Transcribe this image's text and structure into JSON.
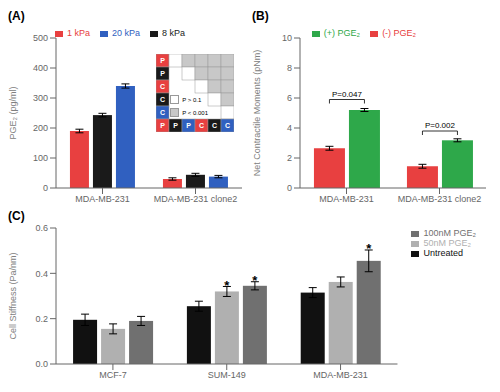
{
  "chart_data": [
    {
      "type": "bar",
      "title": "(A)",
      "ylabel": "PGE₂ (pg/ml)",
      "categories": [
        "MDA-MB-231",
        "MDA-MB-231 clone2"
      ],
      "series": [
        {
          "name": "1 kPa",
          "color": "#e84040",
          "values": [
            190,
            30
          ],
          "errors": [
            6,
            4
          ]
        },
        {
          "name": "8 kPa",
          "color": "#1a1a1a",
          "values": [
            243,
            44
          ],
          "errors": [
            6,
            5
          ]
        },
        {
          "name": "20 kPa",
          "color": "#3060c0",
          "values": [
            340,
            38
          ],
          "errors": [
            7,
            4
          ]
        }
      ],
      "ylim": [
        0,
        500
      ],
      "yticks": [
        0,
        100,
        200,
        300,
        400,
        500
      ],
      "legend": "top"
    },
    {
      "type": "bar",
      "title": "(B)",
      "ylabel": "Net Contractile Moments (pNm)",
      "categories": [
        "MDA-MB-231",
        "MDA-MB-231 clone2"
      ],
      "series": [
        {
          "name": "(-) PGE₂",
          "color": "#e84040",
          "values": [
            2.65,
            1.45
          ],
          "errors": [
            0.13,
            0.13
          ]
        },
        {
          "name": "(+) PGE₂",
          "color": "#2ea84a",
          "values": [
            5.2,
            3.18
          ],
          "errors": [
            0.1,
            0.1
          ]
        }
      ],
      "ylim": [
        0,
        10
      ],
      "yticks": [
        0,
        2,
        4,
        6,
        8,
        10
      ],
      "legend": "top",
      "annotations": [
        {
          "text": "P=0.047",
          "category": "MDA-MB-231",
          "y": 5.9
        },
        {
          "text": "P=0.002",
          "category": "MDA-MB-231 clone2",
          "y": 3.8
        }
      ]
    },
    {
      "type": "bar",
      "title": "(C)",
      "ylabel": "Cell Stiffness (Pa/nm)",
      "categories": [
        "MCF-7",
        "SUM-149",
        "MDA-MB-231"
      ],
      "series": [
        {
          "name": "Untreated",
          "color": "#111111",
          "values": [
            0.195,
            0.255,
            0.315
          ],
          "errors": [
            0.025,
            0.022,
            0.022
          ]
        },
        {
          "name": "50nM PGE₂",
          "color": "#b0b0b0",
          "values": [
            0.155,
            0.32,
            0.362
          ],
          "errors": [
            0.022,
            0.022,
            0.022
          ]
        },
        {
          "name": "100nM PGE₂",
          "color": "#707070",
          "values": [
            0.19,
            0.345,
            0.455
          ],
          "errors": [
            0.02,
            0.018,
            0.048
          ]
        }
      ],
      "ylim": [
        0,
        0.6
      ],
      "yticks": [
        {
          "value": 0.0,
          "label": "0.0"
        },
        0.2,
        0.4,
        0.6
      ],
      "legend": "right",
      "annotations": [
        {
          "text": "*",
          "category": "SUM-149",
          "series": "50nM PGE₂",
          "y": 0.355
        },
        {
          "text": "*",
          "category": "SUM-149",
          "series": "100nM PGE₂",
          "y": 0.375
        },
        {
          "text": "*",
          "category": "MDA-MB-231",
          "series": "100nM PGE₂",
          "y": 0.515
        }
      ]
    },
    {
      "type": "matrix",
      "row_labels": [
        "P",
        "P",
        "C",
        "C",
        "C"
      ],
      "row_colors": [
        "#e84040",
        "#1a1a1a",
        "#e84040",
        "#1a1a1a",
        "#3060c0"
      ],
      "col_labels": [
        "P",
        "P",
        "P",
        "C",
        "C",
        "C"
      ],
      "col_colors": [
        "#e84040",
        "#1a1a1a",
        "#3060c0",
        "#e84040",
        "#1a1a1a",
        "#3060c0"
      ],
      "cells": [
        [
          0,
          1,
          1,
          1,
          1
        ],
        [
          0,
          1,
          1,
          1
        ],
        [
          0,
          1,
          1
        ],
        [
          0,
          1
        ],
        [
          0
        ]
      ],
      "cell_legend": [
        {
          "label": "P > 0.1",
          "color": "#ffffff"
        },
        {
          "label": "P < 0.001",
          "color": "#c8c8c8"
        }
      ]
    }
  ]
}
